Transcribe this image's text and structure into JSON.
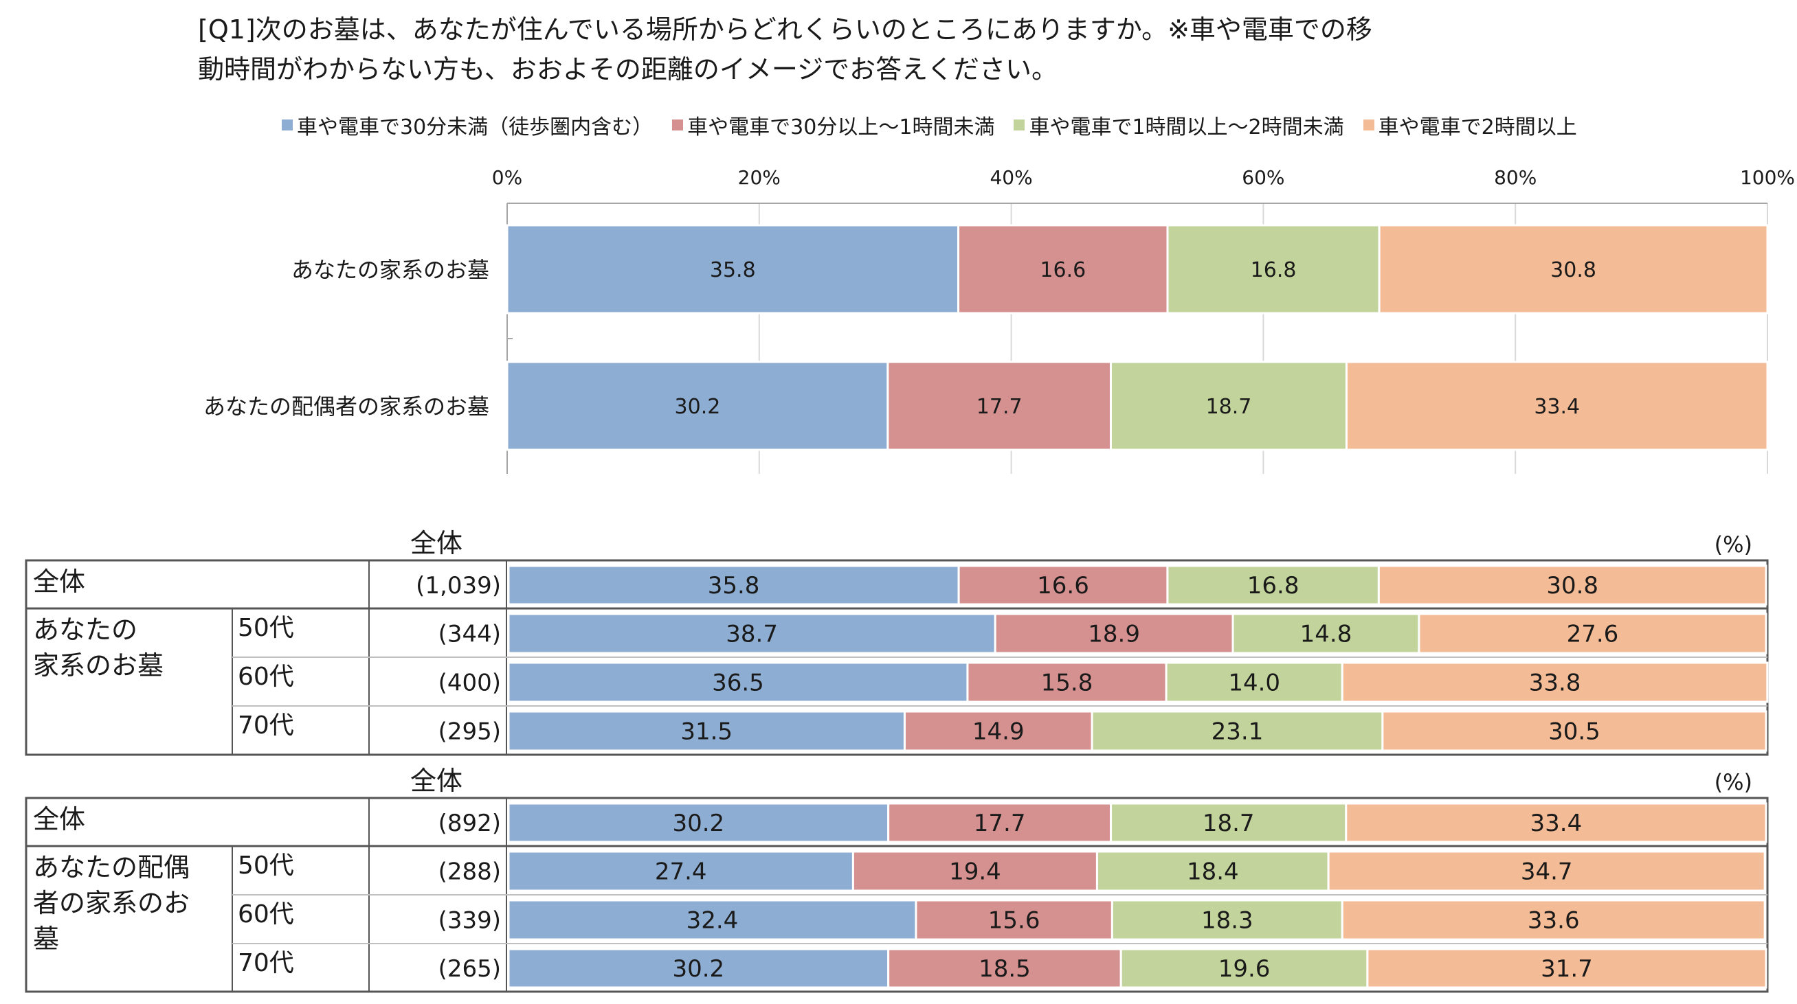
{
  "question": {
    "line1": "[Q1]次のお墓は、あなたが住んでいる場所からどれくらいのところにありますか。※車や電車での移",
    "line2": "動時間がわからない方も、おおよその距離のイメージでお答えください。"
  },
  "colors": {
    "blue": "#8eadd2",
    "red": "#d49190",
    "green": "#c2d49b",
    "orange": "#f4bc96"
  },
  "legend": [
    {
      "label": "車や電車で30分未満（徒歩圏内含む）",
      "color": "#8eadd2"
    },
    {
      "label": "車や電車で30分以上～1時間未満",
      "color": "#d49190"
    },
    {
      "label": "車や電車で1時間以上～2時間未満",
      "color": "#c2d49b"
    },
    {
      "label": "車や電車で2時間以上",
      "color": "#f4bc96"
    }
  ],
  "chart_data": [
    {
      "type": "bar",
      "orientation": "horizontal-stacked-100",
      "ticks": [
        "0%",
        "20%",
        "40%",
        "60%",
        "80%",
        "100%"
      ],
      "xlim": [
        0,
        100
      ],
      "series_names": [
        "車や電車で30分未満（徒歩圏内含む）",
        "車や電車で30分以上～1時間未満",
        "車や電車で1時間以上～2時間未満",
        "車や電車で2時間以上"
      ],
      "rows": [
        {
          "label": "あなたの家系のお墓",
          "values": [
            35.8,
            16.6,
            16.8,
            30.8
          ],
          "value_labels": [
            "35.8",
            "16.6",
            "16.8",
            "30.8"
          ]
        },
        {
          "label": "あなたの配偶者の家系のお墓",
          "values": [
            30.2,
            17.7,
            18.7,
            33.4
          ],
          "value_labels": [
            "30.2",
            "17.7",
            "18.7",
            "33.4"
          ]
        }
      ]
    },
    {
      "type": "table",
      "title": "全体",
      "unit": "(%)",
      "group_label": "あなたの\n家系のお墓",
      "rows": [
        {
          "label": "全体",
          "age": "",
          "n": "(1,039)",
          "values": [
            35.8,
            16.6,
            16.8,
            30.8
          ],
          "value_labels": [
            "35.8",
            "16.6",
            "16.8",
            "30.8"
          ]
        },
        {
          "label": "",
          "age": "50代",
          "n": "(344)",
          "values": [
            38.7,
            18.9,
            14.8,
            27.6
          ],
          "value_labels": [
            "38.7",
            "18.9",
            "14.8",
            "27.6"
          ]
        },
        {
          "label": "",
          "age": "60代",
          "n": "(400)",
          "values": [
            36.5,
            15.8,
            14.0,
            33.8
          ],
          "value_labels": [
            "36.5",
            "15.8",
            "14.0",
            "33.8"
          ]
        },
        {
          "label": "",
          "age": "70代",
          "n": "(295)",
          "values": [
            31.5,
            14.9,
            23.1,
            30.5
          ],
          "value_labels": [
            "31.5",
            "14.9",
            "23.1",
            "30.5"
          ]
        }
      ]
    },
    {
      "type": "table",
      "title": "全体",
      "unit": "(%)",
      "group_label": "あなたの配偶\n者の家系のお\n墓",
      "rows": [
        {
          "label": "全体",
          "age": "",
          "n": "(892)",
          "values": [
            30.2,
            17.7,
            18.7,
            33.4
          ],
          "value_labels": [
            "30.2",
            "17.7",
            "18.7",
            "33.4"
          ]
        },
        {
          "label": "",
          "age": "50代",
          "n": "(288)",
          "values": [
            27.4,
            19.4,
            18.4,
            34.7
          ],
          "value_labels": [
            "27.4",
            "19.4",
            "18.4",
            "34.7"
          ]
        },
        {
          "label": "",
          "age": "60代",
          "n": "(339)",
          "values": [
            32.4,
            15.6,
            18.3,
            33.6
          ],
          "value_labels": [
            "32.4",
            "15.6",
            "18.3",
            "33.6"
          ]
        },
        {
          "label": "",
          "age": "70代",
          "n": "(265)",
          "values": [
            30.2,
            18.5,
            19.6,
            31.7
          ],
          "value_labels": [
            "30.2",
            "18.5",
            "19.6",
            "31.7"
          ]
        }
      ]
    }
  ]
}
